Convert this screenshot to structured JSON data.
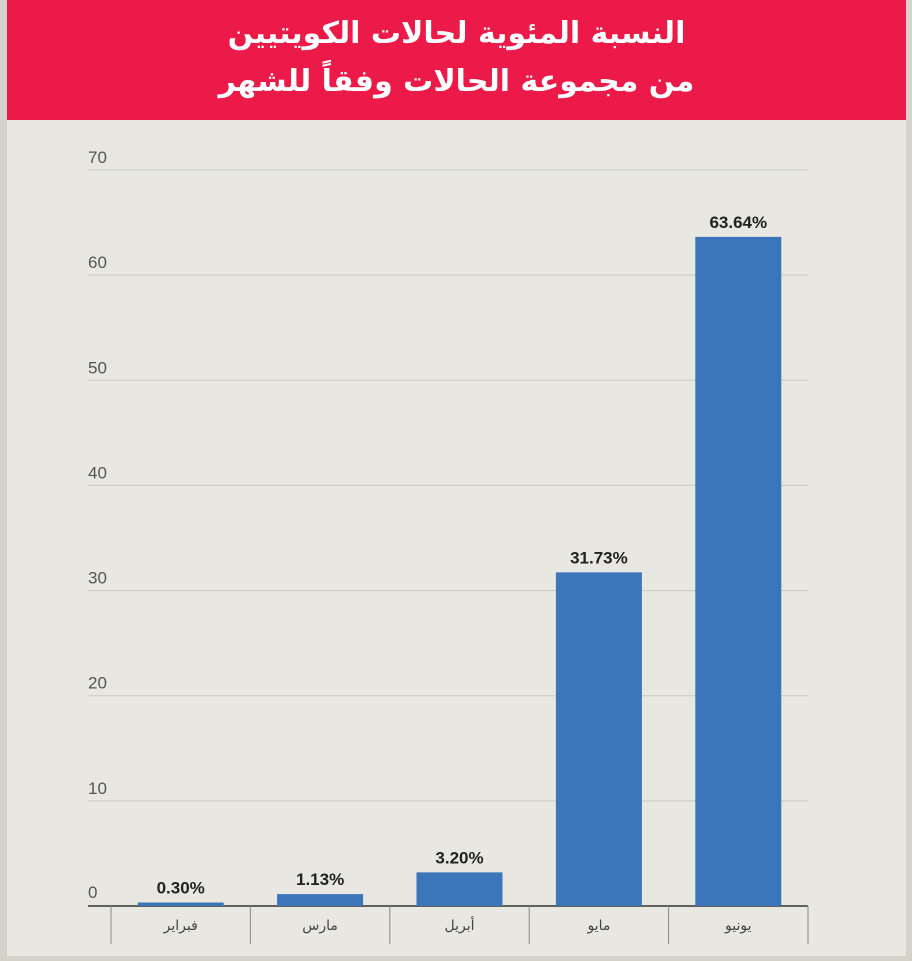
{
  "header": {
    "title_line1": "النسبة المئوية لحالات الكويتيين",
    "title_line2": "من مجموعة الحالات وفقاً للشهر"
  },
  "colors": {
    "header_bg": "#ec1a48",
    "bar": "#3b76bb",
    "background": "#e8e7e1",
    "gridline": "#c9c8c2"
  },
  "chart_data": {
    "type": "bar",
    "title": "النسبة المئوية لحالات الكويتيين من مجموعة الحالات وفقاً للشهر",
    "categories": [
      "فبراير",
      "مارس",
      "أبريل",
      "مايو",
      "يونيو"
    ],
    "values": [
      0.3,
      1.13,
      3.2,
      31.73,
      63.64
    ],
    "data_labels": [
      "0.30%",
      "1.13%",
      "3.20%",
      "31.73%",
      "63.64%"
    ],
    "yticks": [
      0,
      10,
      20,
      30,
      40,
      50,
      60,
      70
    ],
    "ylim": [
      0,
      70
    ],
    "xlabel": "",
    "ylabel": "",
    "grid": true,
    "legend": "none"
  }
}
